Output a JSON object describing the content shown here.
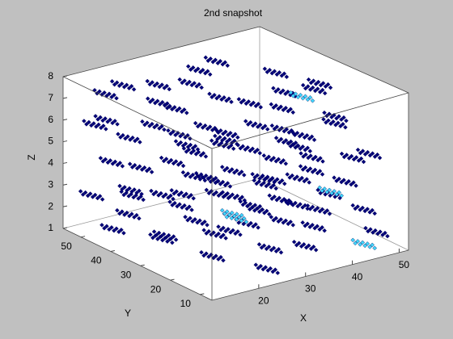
{
  "chart_data": {
    "type": "scatter3d",
    "title": "2nd snapshot",
    "xlabel": "X",
    "ylabel": "Y",
    "zlabel": "Z",
    "xlim": [
      10,
      52
    ],
    "ylim": [
      6,
      56
    ],
    "zlim": [
      1,
      8
    ],
    "xticks": [
      20,
      30,
      40,
      50
    ],
    "yticks": [
      10,
      20,
      30,
      40,
      50
    ],
    "zticks": [
      1,
      2,
      3,
      4,
      5,
      6,
      7,
      8
    ],
    "series": [
      {
        "color": "#00007a",
        "x": [
          15,
          20,
          25,
          30,
          35,
          40,
          45,
          48,
          20,
          30,
          12,
          18,
          25,
          40,
          45,
          50,
          35,
          15,
          14,
          22,
          30,
          42,
          48,
          36,
          20,
          28,
          50,
          13,
          20,
          26,
          34,
          44,
          49,
          32,
          18,
          40,
          15,
          24,
          30,
          38,
          46,
          50,
          22,
          42,
          12,
          14,
          20,
          28,
          36,
          45,
          50,
          26,
          40,
          16,
          12,
          22,
          30,
          38,
          46,
          48,
          18,
          34,
          42,
          15,
          22,
          30,
          38,
          44,
          50,
          26,
          16,
          36,
          14,
          20,
          28,
          36,
          46,
          50,
          24,
          40,
          18
        ],
        "y": [
          50,
          52,
          48,
          45,
          50,
          52,
          40,
          30,
          40,
          35,
          45,
          30,
          25,
          30,
          20,
          35,
          15,
          20,
          52,
          45,
          50,
          44,
          25,
          22,
          15,
          30,
          45,
          35,
          50,
          40,
          46,
          36,
          15,
          12,
          25,
          20,
          48,
          30,
          20,
          38,
          48,
          22,
          12,
          12,
          20,
          40,
          32,
          48,
          30,
          28,
          40,
          16,
          50,
          10,
          50,
          42,
          36,
          22,
          12,
          45,
          18,
          10,
          36,
          30,
          52,
          26,
          48,
          24,
          30,
          12,
          44,
          40,
          46,
          22,
          40,
          16,
          40,
          14,
          10,
          30,
          36
        ],
        "z": [
          7.5,
          7.5,
          7.5,
          7.5,
          7.5,
          7.5,
          7.5,
          7.5,
          7.5,
          7.5,
          6.8,
          6.8,
          6.8,
          6.8,
          6.8,
          6.8,
          6.8,
          6.8,
          6,
          6,
          6,
          6,
          6,
          6,
          6,
          6,
          6,
          5.2,
          5.2,
          5.2,
          5.2,
          5.2,
          5.2,
          5.2,
          5.2,
          5.2,
          4.5,
          4.5,
          4.5,
          4.5,
          4.5,
          4.5,
          4.5,
          4.5,
          4.5,
          3.8,
          3.8,
          3.8,
          3.8,
          3.8,
          3.8,
          3.8,
          3.8,
          3.8,
          3,
          3,
          3,
          3,
          3,
          3,
          3,
          3,
          3,
          2.3,
          2.3,
          2.3,
          2.3,
          2.3,
          2.3,
          2.3,
          2.3,
          2.3,
          1.6,
          1.6,
          1.6,
          1.6,
          1.6,
          1.6,
          1.6,
          1.6,
          1.6
        ]
      },
      {
        "color": "#40d8ff",
        "x": [
          30,
          44,
          20,
          46,
          48
        ],
        "y": [
          30,
          20,
          15,
          12,
          36
        ],
        "z": [
          2.3,
          3.4,
          4,
          1.4,
          6.5
        ]
      }
    ]
  }
}
